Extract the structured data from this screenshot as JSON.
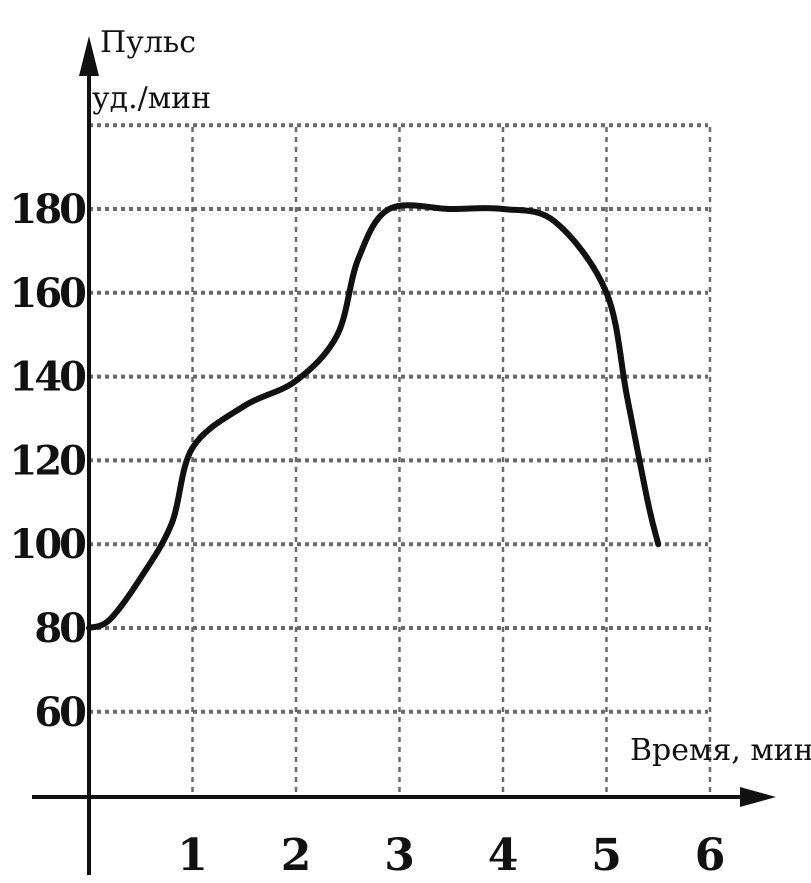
{
  "chart_data": {
    "type": "line",
    "ylabel_line1": "Пульс",
    "ylabel_line2": "уд./мин",
    "xlabel": "Время, мин",
    "x_ticks": [
      "1",
      "2",
      "3",
      "4",
      "5",
      "6"
    ],
    "y_ticks": [
      "60",
      "80",
      "100",
      "120",
      "140",
      "160",
      "180"
    ],
    "xlim": [
      0,
      6.2
    ],
    "ylim": [
      40,
      200
    ],
    "grid": true,
    "series": [
      {
        "x": [
          0,
          0.2,
          0.5,
          0.8,
          1.0,
          1.5,
          2.0,
          2.4,
          2.6,
          2.9,
          3.5,
          4.0,
          4.5,
          5.0,
          5.2,
          5.4,
          5.5
        ],
        "y": [
          80,
          82,
          92,
          105,
          123,
          133,
          139,
          150,
          168,
          180,
          180,
          180,
          177,
          160,
          135,
          110,
          100
        ]
      }
    ]
  }
}
